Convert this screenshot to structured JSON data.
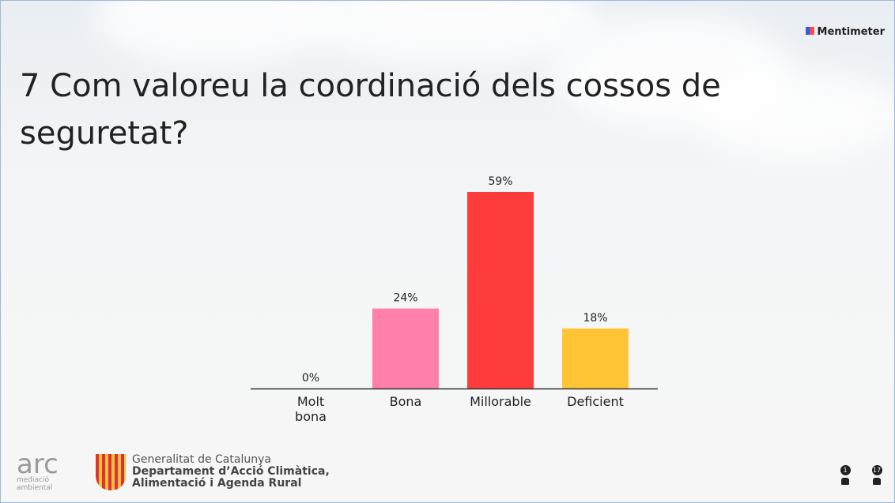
{
  "brand": "Mentimeter",
  "chart_data": {
    "type": "bar",
    "title": "7 Com valoreu la coordinació dels cossos de seguretat?",
    "categories": [
      "Molt bona",
      "Bona",
      "Millorable",
      "Deficient"
    ],
    "values": [
      0,
      24,
      59,
      18
    ],
    "value_labels": [
      "0%",
      "24%",
      "59%",
      "18%"
    ],
    "colors": [
      "#d0d0d0",
      "#ff80aa",
      "#ff3c3c",
      "#ffc536"
    ]
  },
  "footer": {
    "logo_main": "arc",
    "logo_sub": [
      "mediació",
      "ambiental"
    ],
    "org_lines": [
      "Generalitat de Catalunya",
      "Departament d’Acció Climàtica,",
      "Alimentació i Agenda Rural"
    ]
  },
  "counters": [
    "1",
    "17"
  ]
}
